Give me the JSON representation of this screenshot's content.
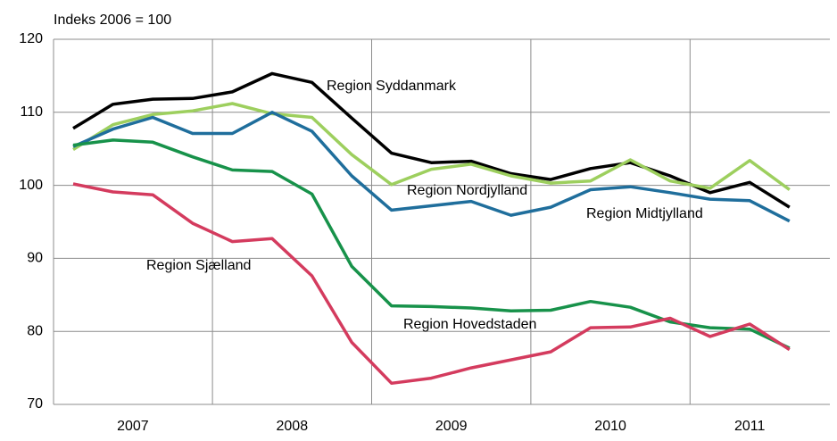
{
  "chart_data": {
    "type": "line",
    "y_axis_label": "Indeks 2006 = 100",
    "categories": [
      null,
      null,
      null,
      null,
      null,
      null,
      null,
      null,
      null,
      null,
      null,
      null,
      null,
      null,
      null,
      null,
      null,
      null,
      null
    ],
    "year_labels": [
      "2007",
      "2008",
      "2009",
      "2010",
      "2011"
    ],
    "ylim": [
      70,
      120
    ],
    "yticks": [
      70,
      80,
      90,
      100,
      110,
      120
    ],
    "grid": true,
    "series": [
      {
        "name": "Region Syddanmark",
        "color": "#000000",
        "values": [
          107.8,
          111.1,
          111.8,
          111.9,
          112.8,
          115.3,
          114.1,
          109.2,
          104.4,
          103.1,
          103.3,
          101.6,
          100.8,
          102.3,
          103.1,
          101.3,
          99.0,
          100.4,
          97.0
        ]
      },
      {
        "name": "Region Nordjylland",
        "color": "#9dcf5e",
        "values": [
          104.9,
          108.3,
          109.7,
          110.2,
          111.2,
          109.8,
          109.3,
          104.2,
          100.1,
          102.2,
          102.9,
          101.3,
          100.3,
          100.6,
          103.5,
          100.6,
          99.6,
          103.4,
          99.4
        ]
      },
      {
        "name": "Region Midtjylland",
        "color": "#1f6e9c",
        "values": [
          105.3,
          107.7,
          109.3,
          107.1,
          107.1,
          110.0,
          107.4,
          101.3,
          96.6,
          97.2,
          97.8,
          95.9,
          97.0,
          99.4,
          99.8,
          99.0,
          98.1,
          97.9,
          95.1
        ]
      },
      {
        "name": "Region Sjælland",
        "color": "#17924a",
        "values": [
          105.5,
          106.2,
          105.9,
          103.9,
          102.1,
          101.9,
          98.8,
          88.9,
          83.5,
          83.4,
          83.2,
          82.8,
          82.9,
          84.1,
          83.3,
          81.3,
          80.5,
          80.3,
          77.7
        ]
      },
      {
        "name": "Region Hovedstaden",
        "color": "#d43b5e",
        "values": [
          100.2,
          99.1,
          98.7,
          94.8,
          92.3,
          92.7,
          87.6,
          78.5,
          72.9,
          73.6,
          75.0,
          76.1,
          77.2,
          80.5,
          80.6,
          81.8,
          79.3,
          81.0,
          77.5
        ]
      }
    ]
  }
}
